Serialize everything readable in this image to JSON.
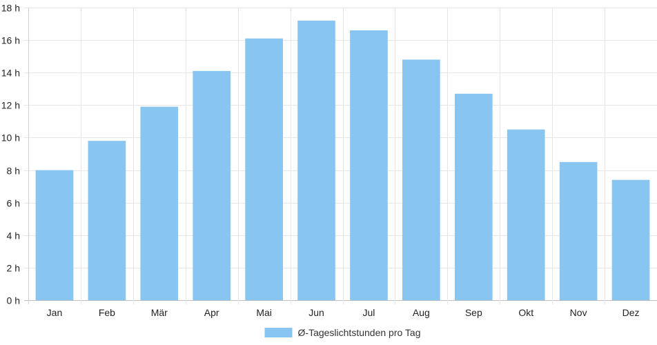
{
  "chart_data": {
    "type": "bar",
    "categories": [
      "Jan",
      "Feb",
      "Mär",
      "Apr",
      "Mai",
      "Jun",
      "Jul",
      "Aug",
      "Sep",
      "Okt",
      "Nov",
      "Dez"
    ],
    "series": [
      {
        "name": "Ø-Tageslichtstunden pro Tag",
        "values": [
          8.0,
          9.8,
          11.9,
          14.1,
          16.1,
          17.2,
          16.6,
          14.8,
          12.7,
          10.5,
          8.5,
          7.4
        ],
        "color": "#88C6F1"
      }
    ],
    "ylim": [
      0,
      18
    ],
    "yticks": [
      0,
      2,
      4,
      6,
      8,
      10,
      12,
      14,
      16,
      18
    ],
    "y_unit_suffix": " h",
    "grid": true,
    "grid_color": "#e6e6e6",
    "legend_position": "bottom"
  }
}
